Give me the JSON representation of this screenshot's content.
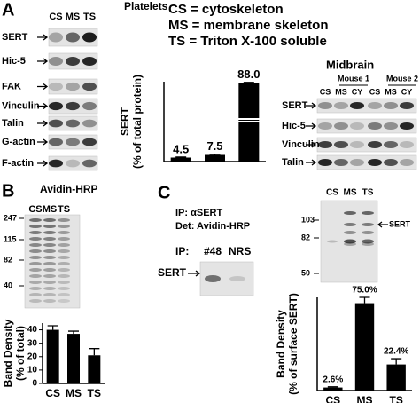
{
  "panel_labels": [
    "A",
    "B",
    "C"
  ],
  "panel_a": {
    "title": "Platelets",
    "lanes": [
      "CS",
      "MS",
      "TS"
    ],
    "rows": [
      "SERT",
      "Hic-5",
      "FAK",
      "Vinculin",
      "Talin",
      "G-actin",
      "F-actin"
    ],
    "legend": [
      "CS = cytoskeleton",
      "MS = membrane skeleton",
      "TS = Triton X-100 soluble"
    ],
    "midbrain": {
      "title": "Midbrain",
      "mice": [
        "Mouse 1",
        "Mouse 2"
      ],
      "lanes": [
        "CS",
        "MS",
        "CY",
        "CS",
        "MS",
        "CY"
      ],
      "rows": [
        "SERT",
        "Hic-5",
        "Vinculin",
        "Talin"
      ]
    }
  },
  "panel_b": {
    "title": "Avidin-HRP",
    "lanes": [
      "CS",
      "MS",
      "TS"
    ],
    "markers": [
      247,
      115,
      82,
      40
    ]
  },
  "panel_c": {
    "ip_lines": [
      "IP: αSERT",
      "Det: Avidin-HRP"
    ],
    "ip_label": "IP:",
    "ip_lanes": [
      "#48",
      "NRS"
    ],
    "band_label": "SERT",
    "lanes": [
      "CS",
      "MS",
      "TS"
    ],
    "markers": [
      103,
      82,
      50
    ],
    "arrow_label": "SERT"
  },
  "chart_data": [
    {
      "type": "bar",
      "y_label": [
        "SERT",
        "(% of total protein)"
      ],
      "categories": [
        null,
        null,
        null
      ],
      "values": [
        4.5,
        7.5,
        88.0
      ],
      "value_labels": [
        "4.5",
        "7.5",
        "88.0"
      ],
      "errors": [
        0.6,
        0.8,
        1.2
      ],
      "color": "#000000",
      "ylim": [
        0,
        90
      ]
    },
    {
      "type": "bar",
      "y_label": [
        "Band Density",
        "(% of total)"
      ],
      "categories": [
        "CS",
        "MS",
        "TS"
      ],
      "values": [
        40,
        37,
        21
      ],
      "errors": [
        3,
        2,
        5
      ],
      "color": "#000000",
      "ylim": [
        0,
        45
      ],
      "yticks": [
        0,
        10,
        20,
        30,
        40
      ]
    },
    {
      "type": "bar",
      "y_label": [
        "Band Density",
        "(% of surface SERT)"
      ],
      "categories": [
        "CS",
        "MS",
        "TS"
      ],
      "values": [
        2.6,
        75.0,
        22.4
      ],
      "value_labels": [
        "2.6%",
        "75.0%",
        "22.4%"
      ],
      "errors": [
        0.6,
        5,
        5
      ],
      "color": "#000000",
      "ylim": [
        0,
        80
      ]
    }
  ]
}
